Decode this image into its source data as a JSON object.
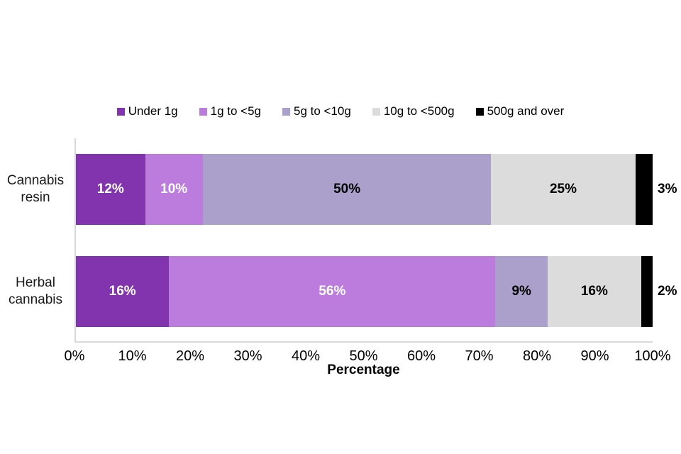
{
  "chart_data": {
    "type": "bar",
    "subtype": "horizontal-stacked",
    "categories": [
      "Cannabis\nresin",
      "Herbal\ncannabis"
    ],
    "series": [
      {
        "name": "Under 1g",
        "color": "#8233AE",
        "label_color": "#FFFFFF",
        "label_outside": false,
        "values": [
          12,
          16
        ]
      },
      {
        "name": "1g to <5g",
        "color": "#BC7CDE",
        "label_color": "#FFFFFF",
        "label_outside": false,
        "values": [
          10,
          56
        ]
      },
      {
        "name": "5g to <10g",
        "color": "#ABA0CB",
        "label_color": "#000000",
        "label_outside": false,
        "values": [
          50,
          9
        ]
      },
      {
        "name": "10g to <500g",
        "color": "#DCDCDC",
        "label_color": "#000000",
        "label_outside": false,
        "values": [
          25,
          16
        ]
      },
      {
        "name": "500g and over",
        "color": "#000000",
        "label_color": "#000000",
        "label_outside": true,
        "values": [
          3,
          2
        ]
      }
    ],
    "value_suffix": "%",
    "xlabel": "Percentage",
    "x_ticks": [
      "0%",
      "10%",
      "20%",
      "30%",
      "40%",
      "50%",
      "60%",
      "70%",
      "80%",
      "90%",
      "100%"
    ],
    "xlim": [
      0,
      100
    ],
    "grid": false,
    "legend_position": "top",
    "axis_color": "#D9D9D9",
    "background_color": "#FFFFFF"
  }
}
